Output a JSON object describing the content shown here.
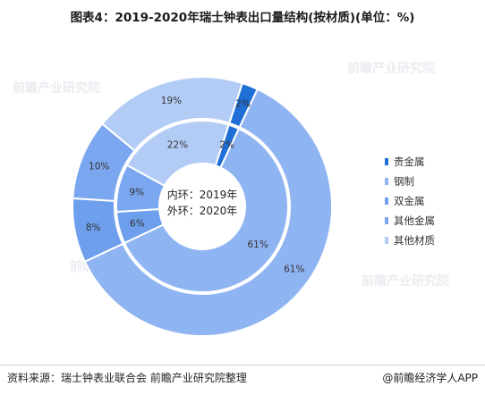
{
  "title": "图表4：2019-2020年瑞士钟表出口量结构(按材质)(单位：%)",
  "chart_data": {
    "type": "pie",
    "categories": [
      "贵金属",
      "钢制",
      "双金属",
      "其他金属",
      "其他材质"
    ],
    "colors": [
      "#1f6fd6",
      "#8fb4f2",
      "#6e9fec",
      "#7aa7ef",
      "#b3ccf6"
    ],
    "series": [
      {
        "ring": "inner",
        "year": "2019",
        "values": [
          2,
          61,
          6,
          9,
          22
        ]
      },
      {
        "ring": "outer",
        "year": "2020",
        "values": [
          2,
          61,
          8,
          10,
          19
        ]
      }
    ],
    "center_labels": [
      "内环：2019年",
      "外环：2020年"
    ]
  },
  "legend": {
    "position": "right"
  },
  "watermark": "前瞻产业研究院",
  "footer": {
    "source": "资料来源：瑞士钟表业联合会 前瞻产业研究院整理",
    "brand": "@前瞻经济学人APP"
  }
}
